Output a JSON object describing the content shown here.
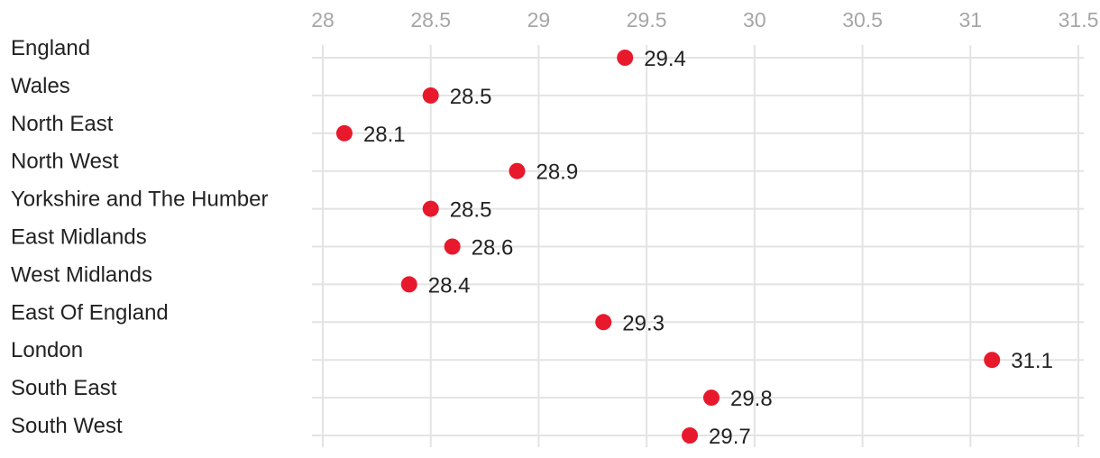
{
  "chart_data": {
    "type": "scatter",
    "orientation": "horizontal-dot",
    "title": "",
    "xlabel": "",
    "ylabel": "",
    "xlim": [
      28,
      31.5
    ],
    "x_ticks": [
      28,
      28.5,
      29,
      29.5,
      30,
      30.5,
      31,
      31.5
    ],
    "x_tick_labels": [
      "28",
      "28.5",
      "29",
      "29.5",
      "30",
      "30.5",
      "31",
      "31.5"
    ],
    "x_axis_position": "top",
    "grid": true,
    "categories": [
      "England",
      "Wales",
      "North East",
      "North West",
      "Yorkshire and The Humber",
      "East Midlands",
      "West Midlands",
      "East Of England",
      "London",
      "South East",
      "South West"
    ],
    "series": [
      {
        "values": [
          29.4,
          28.5,
          28.1,
          28.9,
          28.5,
          28.6,
          28.4,
          29.3,
          31.1,
          29.8,
          29.7
        ],
        "labels": [
          "29.4",
          "28.5",
          "28.1",
          "28.9",
          "28.5",
          "28.6",
          "28.4",
          "29.3",
          "31.1",
          "29.8",
          "29.7"
        ]
      }
    ],
    "colors": {
      "point": "#e8192c",
      "grid": "#e3e3e3",
      "tick_text": "#a6a6a6",
      "category_text": "#222222",
      "data_label_text": "#222222"
    }
  }
}
